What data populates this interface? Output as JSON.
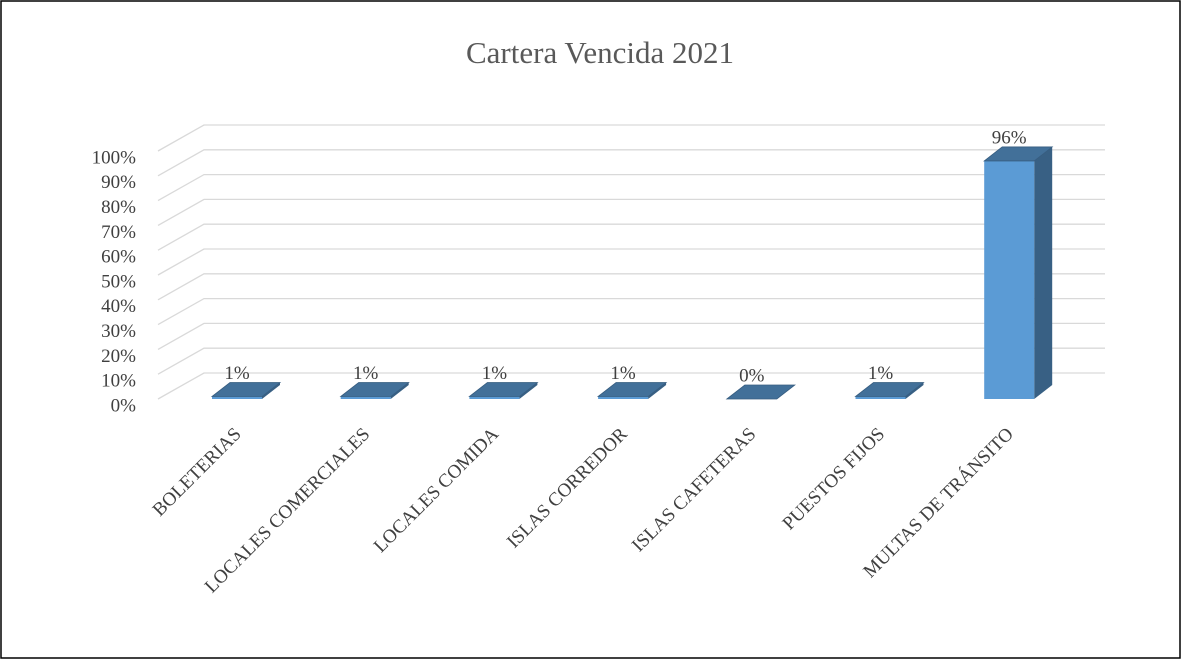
{
  "chart_data": {
    "type": "bar3d",
    "title": "Cartera Vencida 2021",
    "categories": [
      "BOLETERIAS",
      "LOCALES COMERCIALES",
      "LOCALES COMIDA",
      "ISLAS CORREDOR",
      "ISLAS CAFETERAS",
      "PUESTOS FIJOS",
      "MULTAS DE TRÁNSITO"
    ],
    "values": [
      1,
      1,
      1,
      1,
      0,
      1,
      96
    ],
    "value_labels": [
      "1%",
      "1%",
      "1%",
      "1%",
      "0%",
      "1%",
      "96%"
    ],
    "color": "#5b9bd5",
    "ylim": [
      0,
      100
    ],
    "yticks": [
      {
        "value": 0,
        "label": "0%"
      },
      {
        "value": 10,
        "label": "10%"
      },
      {
        "value": 20,
        "label": "20%"
      },
      {
        "value": 30,
        "label": "30%"
      },
      {
        "value": 40,
        "label": "40%"
      },
      {
        "value": 50,
        "label": "50%"
      },
      {
        "value": 60,
        "label": "60%"
      },
      {
        "value": 70,
        "label": "70%"
      },
      {
        "value": 80,
        "label": "80%"
      },
      {
        "value": 90,
        "label": "90%"
      },
      {
        "value": 100,
        "label": "100%"
      }
    ],
    "grid": true
  }
}
